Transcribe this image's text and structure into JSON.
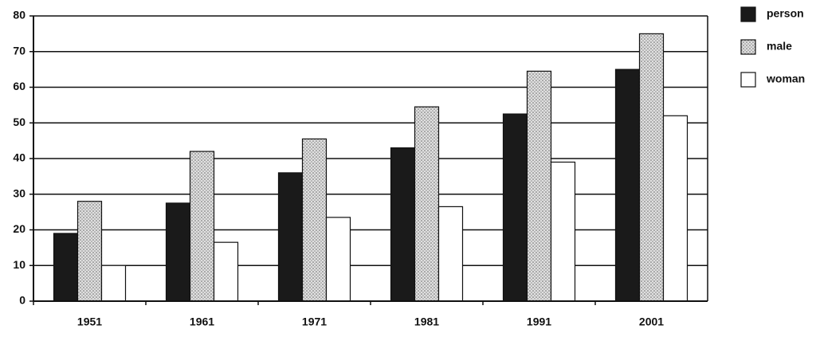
{
  "chart_data": {
    "type": "bar",
    "categories": [
      "1951",
      "1961",
      "1971",
      "1981",
      "1991",
      "2001"
    ],
    "series": [
      {
        "name": "person",
        "color": "#1a1a1a",
        "values": [
          19,
          27.5,
          36,
          43,
          52.5,
          65
        ]
      },
      {
        "name": "male",
        "color": "#c4c4c4",
        "values": [
          28,
          42,
          45.5,
          54.5,
          64.5,
          75
        ]
      },
      {
        "name": "woman",
        "color": "#ffffff",
        "values": [
          10,
          16.5,
          23.5,
          26.5,
          39,
          52
        ]
      }
    ],
    "ylim": [
      0,
      80
    ],
    "yticks": [
      0,
      10,
      20,
      30,
      40,
      50,
      60,
      70,
      80
    ],
    "grid": true,
    "legend": "right"
  }
}
